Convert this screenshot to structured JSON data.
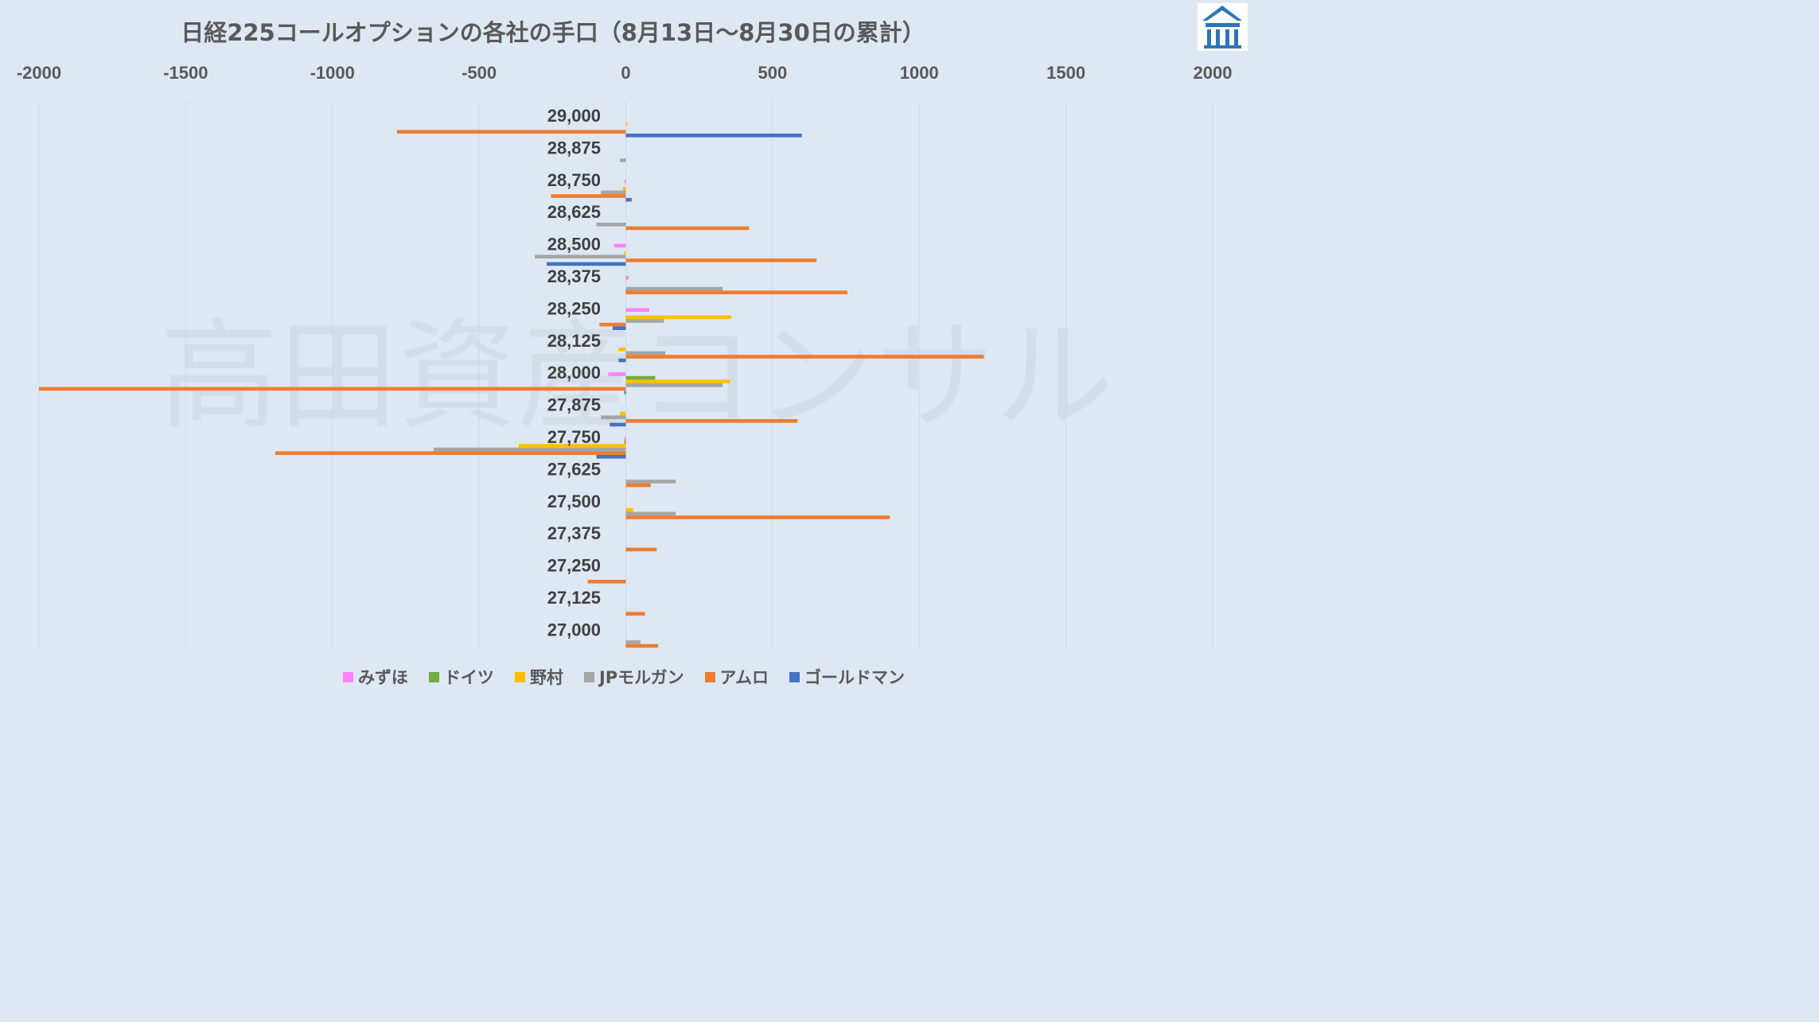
{
  "title": "日経225コールオプションの各社の手口（8月13日〜8月30日の累計）",
  "watermark": "高田資産コンサル",
  "chart_data": {
    "type": "bar",
    "orientation": "horizontal",
    "xlim": [
      -2000,
      2000
    ],
    "xticks": [
      "-2000",
      "-1500",
      "-1000",
      "-500",
      "0",
      "500",
      "1000",
      "1500",
      "2000"
    ],
    "grid": true,
    "legend_position": "bottom",
    "categories": [
      "29,000",
      "28,875",
      "28,750",
      "28,625",
      "28,500",
      "28,375",
      "28,250",
      "28,125",
      "28,000",
      "27,875",
      "27,750",
      "27,625",
      "27,500",
      "27,375",
      "27,250",
      "27,125",
      "27,000"
    ],
    "series": [
      {
        "name": "みずほ",
        "color": "#ff80ff",
        "values": [
          0,
          0,
          -5,
          0,
          -40,
          10,
          80,
          0,
          -60,
          0,
          -5,
          0,
          0,
          0,
          0,
          0,
          0
        ]
      },
      {
        "name": "ドイツ",
        "color": "#70ad47",
        "values": [
          0,
          0,
          0,
          0,
          0,
          0,
          0,
          0,
          100,
          0,
          -5,
          0,
          0,
          0,
          0,
          0,
          0
        ]
      },
      {
        "name": "野村",
        "color": "#ffc000",
        "values": [
          5,
          0,
          -10,
          0,
          -5,
          0,
          360,
          -25,
          355,
          -20,
          -365,
          0,
          25,
          0,
          0,
          0,
          0
        ]
      },
      {
        "name": "JPモルガン",
        "color": "#a5a5a5",
        "values": [
          0,
          -20,
          -85,
          -100,
          -310,
          330,
          130,
          135,
          330,
          -85,
          -655,
          170,
          170,
          0,
          0,
          0,
          50
        ]
      },
      {
        "name": "アムロ",
        "color": "#ed7d31",
        "values": [
          -780,
          0,
          -255,
          420,
          650,
          755,
          -90,
          1220,
          -2000,
          585,
          -1195,
          85,
          900,
          105,
          -130,
          65,
          110
        ]
      },
      {
        "name": "ゴールドマン",
        "color": "#4472c4",
        "values": [
          600,
          0,
          20,
          0,
          -270,
          0,
          -45,
          -25,
          -5,
          -55,
          -100,
          0,
          0,
          0,
          0,
          0,
          0
        ]
      }
    ]
  }
}
